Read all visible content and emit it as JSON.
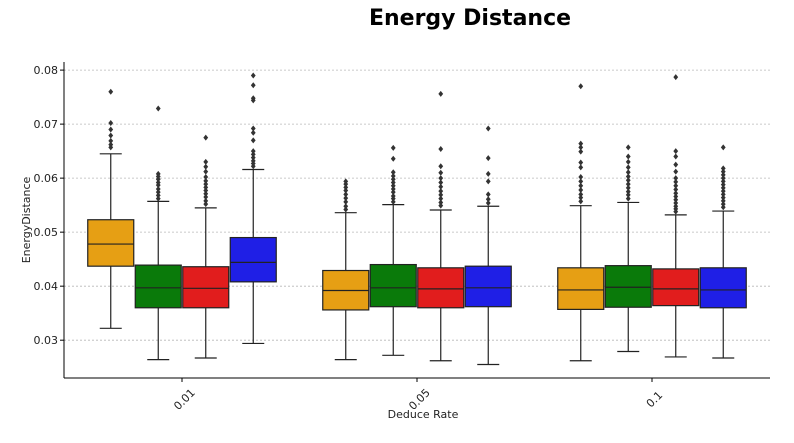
{
  "chart_data": {
    "type": "boxplot",
    "title": "Energy Distance",
    "xlabel": "Deduce Rate",
    "ylabel": "EnergyDistance",
    "ylim": [
      0.023,
      0.0815
    ],
    "yticks": [
      0.03,
      0.04,
      0.05,
      0.06,
      0.07,
      0.08
    ],
    "grid": "horizontal dashed",
    "categories": [
      "0.01",
      "0.05",
      "0.1"
    ],
    "series_colors": [
      "#e69f14",
      "#0a7a0a",
      "#e11d1d",
      "#1f1fe6"
    ],
    "groups": [
      {
        "category": "0.01",
        "boxes": [
          {
            "q1": 0.0437,
            "median": 0.0478,
            "q3": 0.0523,
            "whislo": 0.0322,
            "whishi": 0.0645,
            "fliers": [
              0.076,
              0.0702,
              0.069,
              0.0679,
              0.0669,
              0.0662,
              0.0657
            ]
          },
          {
            "q1": 0.036,
            "median": 0.0397,
            "q3": 0.0439,
            "whislo": 0.0264,
            "whishi": 0.0557,
            "fliers": [
              0.0729,
              0.0608,
              0.0603,
              0.0598,
              0.0592,
              0.0587,
              0.058,
              0.0574,
              0.0568,
              0.0562
            ]
          },
          {
            "q1": 0.036,
            "median": 0.0396,
            "q3": 0.0436,
            "whislo": 0.0267,
            "whishi": 0.0545,
            "fliers": [
              0.0675,
              0.063,
              0.0621,
              0.0612,
              0.0602,
              0.0595,
              0.0589,
              0.0583,
              0.0577,
              0.0571,
              0.0565,
              0.0558,
              0.0552
            ]
          },
          {
            "q1": 0.0408,
            "median": 0.0444,
            "q3": 0.049,
            "whislo": 0.0294,
            "whishi": 0.0616,
            "fliers": [
              0.079,
              0.0772,
              0.0748,
              0.0744,
              0.0692,
              0.0684,
              0.067,
              0.065,
              0.0644,
              0.0638,
              0.0632,
              0.0627,
              0.0622
            ]
          }
        ]
      },
      {
        "category": "0.05",
        "boxes": [
          {
            "q1": 0.0356,
            "median": 0.0392,
            "q3": 0.0429,
            "whislo": 0.0264,
            "whishi": 0.0536,
            "fliers": [
              0.0594,
              0.0589,
              0.0583,
              0.0577,
              0.057,
              0.0563,
              0.0556,
              0.0548,
              0.0542
            ]
          },
          {
            "q1": 0.0362,
            "median": 0.0397,
            "q3": 0.044,
            "whislo": 0.0272,
            "whishi": 0.0551,
            "fliers": [
              0.0656,
              0.0636,
              0.0611,
              0.0604,
              0.0598,
              0.0592,
              0.0586,
              0.058,
              0.0574,
              0.0567,
              0.0562,
              0.0556
            ]
          },
          {
            "q1": 0.036,
            "median": 0.0395,
            "q3": 0.0434,
            "whislo": 0.0262,
            "whishi": 0.0541,
            "fliers": [
              0.0756,
              0.0654,
              0.0622,
              0.061,
              0.06,
              0.0592,
              0.0584,
              0.0576,
              0.0569,
              0.0562,
              0.0555,
              0.0549
            ]
          },
          {
            "q1": 0.0362,
            "median": 0.0397,
            "q3": 0.0437,
            "whislo": 0.0255,
            "whishi": 0.0548,
            "fliers": [
              0.0692,
              0.0637,
              0.0608,
              0.0594,
              0.057,
              0.0561,
              0.0554
            ]
          }
        ]
      },
      {
        "category": "0.1",
        "boxes": [
          {
            "q1": 0.0357,
            "median": 0.0393,
            "q3": 0.0434,
            "whislo": 0.0262,
            "whishi": 0.0549,
            "fliers": [
              0.077,
              0.0664,
              0.0657,
              0.0649,
              0.0629,
              0.062,
              0.0602,
              0.0594,
              0.0586,
              0.0578,
              0.057,
              0.0564,
              0.0557
            ]
          },
          {
            "q1": 0.0361,
            "median": 0.0398,
            "q3": 0.0438,
            "whislo": 0.0279,
            "whishi": 0.0555,
            "fliers": [
              0.0657,
              0.064,
              0.063,
              0.062,
              0.0611,
              0.0603,
              0.0596,
              0.0589,
              0.0582,
              0.0575,
              0.0569,
              0.0562
            ]
          },
          {
            "q1": 0.0364,
            "median": 0.0395,
            "q3": 0.0432,
            "whislo": 0.0269,
            "whishi": 0.0532,
            "fliers": [
              0.0787,
              0.065,
              0.064,
              0.0625,
              0.0612,
              0.06,
              0.0593,
              0.0586,
              0.0579,
              0.0572,
              0.0566,
              0.056,
              0.0554,
              0.0548,
              0.0543,
              0.0538
            ]
          },
          {
            "q1": 0.036,
            "median": 0.0393,
            "q3": 0.0434,
            "whislo": 0.0267,
            "whishi": 0.0539,
            "fliers": [
              0.0657,
              0.0618,
              0.0612,
              0.0606,
              0.06,
              0.0594,
              0.0588,
              0.0582,
              0.0576,
              0.057,
              0.0564,
              0.0558,
              0.0552,
              0.0546
            ]
          }
        ]
      }
    ]
  }
}
